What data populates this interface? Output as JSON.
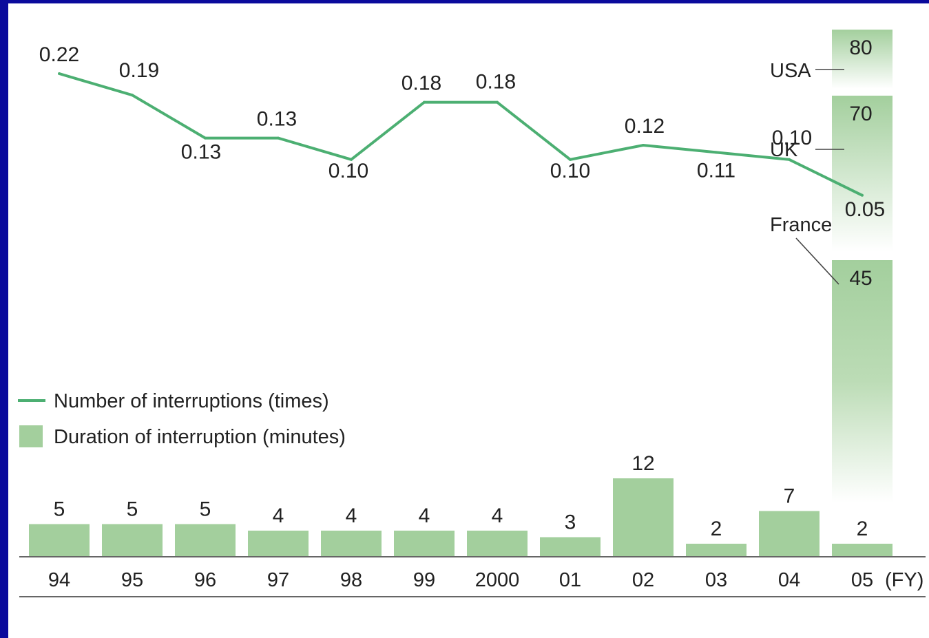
{
  "chart_data": {
    "type": "bar+line",
    "categories": [
      "94",
      "95",
      "96",
      "97",
      "98",
      "99",
      "2000",
      "01",
      "02",
      "03",
      "04",
      "05"
    ],
    "x_unit": "(FY)",
    "series": [
      {
        "name": "Number of interruptions (times)",
        "kind": "line",
        "values": [
          0.22,
          0.19,
          0.13,
          0.13,
          0.1,
          0.18,
          0.18,
          0.1,
          0.12,
          0.11,
          0.1,
          0.05
        ],
        "labels": [
          "0.22",
          "0.19",
          "0.13",
          "0.13",
          "0.10",
          "0.18",
          "0.18",
          "0.10",
          "0.12",
          "0.11",
          "0.10",
          "0.05"
        ]
      },
      {
        "name": "Duration of interruption (minutes)",
        "kind": "bar",
        "values": [
          5,
          5,
          5,
          4,
          4,
          4,
          4,
          3,
          12,
          2,
          7,
          2
        ]
      }
    ],
    "comparisons": [
      {
        "country": "USA",
        "value": 80
      },
      {
        "country": "UK",
        "value": 70
      },
      {
        "country": "France",
        "value": 45
      }
    ],
    "colors": {
      "line": "#4caf72",
      "bar": "#a3cf9d",
      "axis": "#666666",
      "frame": "#0a0a9c"
    },
    "legend_position": "left-middle",
    "grid": false
  }
}
